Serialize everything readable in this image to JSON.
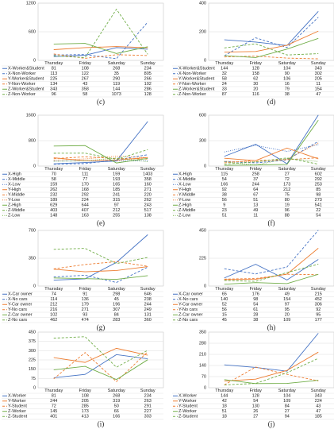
{
  "chart_data": [
    {
      "type": "line",
      "label": "(c)",
      "categories": [
        "Thursday",
        "Friday",
        "Saturday",
        "Sunday"
      ],
      "ylim": [
        0,
        1200
      ],
      "yticks": [
        0,
        600,
        1200
      ],
      "grid": true,
      "series": [
        {
          "name": "X-Worker&Student",
          "color": "#4472c4",
          "line_style": "solid",
          "values": [
            81,
            108,
            268,
            234
          ]
        },
        {
          "name": "X-Non-Worker",
          "color": "#4472c4",
          "line_style": "dashed",
          "values": [
            113,
            122,
            35,
            805
          ]
        },
        {
          "name": "Y-Worker&Student",
          "color": "#ed7d31",
          "line_style": "solid",
          "values": [
            225,
            267,
            290,
            266
          ]
        },
        {
          "name": "Y-Non-Worker",
          "color": "#ed7d31",
          "line_style": "dashed",
          "values": [
            134,
            43,
            119,
            102
          ]
        },
        {
          "name": "Z-Worker&Student",
          "color": "#70ad47",
          "line_style": "solid",
          "values": [
            343,
            358,
            144,
            286
          ]
        },
        {
          "name": "Z-Non-Worker",
          "color": "#70ad47",
          "line_style": "dashed",
          "values": [
            96,
            58,
            1073,
            128
          ]
        }
      ]
    },
    {
      "type": "line",
      "label": "(d)",
      "categories": [
        "Thursday",
        "Friday",
        "Saturday",
        "Sunday"
      ],
      "ylim": [
        0,
        400
      ],
      "yticks": [
        0,
        200,
        400
      ],
      "grid": true,
      "series": [
        {
          "name": "X-Worker&Student",
          "color": "#4472c4",
          "line_style": "solid",
          "values": [
            144,
            128,
            104,
            343
          ]
        },
        {
          "name": "X-Non-Worker",
          "color": "#4472c4",
          "line_style": "dashed",
          "values": [
            32,
            158,
            90,
            302
          ]
        },
        {
          "name": "Y-Worker&Student",
          "color": "#ed7d31",
          "line_style": "solid",
          "values": [
            58,
            62,
            106,
            205
          ]
        },
        {
          "name": "Y-Non-Worker",
          "color": "#ed7d31",
          "line_style": "dashed",
          "values": [
            24,
            30,
            16,
            11
          ]
        },
        {
          "name": "Z-Worker&Student",
          "color": "#70ad47",
          "line_style": "solid",
          "values": [
            33,
            20,
            79,
            154
          ]
        },
        {
          "name": "Z-Non-Worker",
          "color": "#70ad47",
          "line_style": "dashed",
          "values": [
            87,
            116,
            38,
            47
          ]
        }
      ]
    },
    {
      "type": "line",
      "label": "(e)",
      "categories": [
        "Thursday",
        "Friday",
        "Saturday",
        "Sunday"
      ],
      "ylim": [
        0,
        1600
      ],
      "yticks": [
        0,
        800,
        1600
      ],
      "grid": true,
      "series": [
        {
          "name": "X-High",
          "color": "#4472c4",
          "line_style": "solid",
          "values": [
            70,
            111,
            159,
            1403
          ]
        },
        {
          "name": "X-Middle",
          "color": "#4472c4",
          "line_style": "dashed",
          "values": [
            58,
            77,
            193,
            358
          ]
        },
        {
          "name": "X-Low",
          "color": "#4472c4",
          "line_style": "dotted",
          "values": [
            159,
            170,
            165,
            160
          ]
        },
        {
          "name": "Y-High",
          "color": "#ed7d31",
          "line_style": "solid",
          "values": [
            262,
            168,
            185,
            271
          ]
        },
        {
          "name": "Y-Middle",
          "color": "#ed7d31",
          "line_style": "dashed",
          "values": [
            232,
            292,
            241,
            220
          ]
        },
        {
          "name": "Y-Low",
          "color": "#ed7d31",
          "line_style": "dotted",
          "values": [
            189,
            224,
            315,
            262
          ]
        },
        {
          "name": "Z-High",
          "color": "#70ad47",
          "line_style": "solid",
          "values": [
            629,
            644,
            97,
            243
          ]
        },
        {
          "name": "Z-Middle",
          "color": "#70ad47",
          "line_style": "dashed",
          "values": [
            403,
            407,
            212,
            517
          ]
        },
        {
          "name": "Z-Low",
          "color": "#70ad47",
          "line_style": "dotted",
          "values": [
            148,
            163,
            255,
            138
          ]
        }
      ]
    },
    {
      "type": "line",
      "label": "(f)",
      "categories": [
        "Thursday",
        "Friday",
        "Saturday",
        "Sunday"
      ],
      "ylim": [
        0,
        600
      ],
      "yticks": [
        0,
        300,
        600
      ],
      "grid": true,
      "series": [
        {
          "name": "X-High",
          "color": "#4472c4",
          "line_style": "solid",
          "values": [
            115,
            258,
            27,
            602
          ]
        },
        {
          "name": "X-Middle",
          "color": "#4472c4",
          "line_style": "dashed",
          "values": [
            54,
            37,
            72,
            292
          ]
        },
        {
          "name": "X-Low",
          "color": "#4472c4",
          "line_style": "dotted",
          "values": [
            166,
            244,
            173,
            253
          ]
        },
        {
          "name": "Y-High",
          "color": "#ed7d31",
          "line_style": "solid",
          "values": [
            92,
            64,
            212,
            85
          ]
        },
        {
          "name": "Y-Middle",
          "color": "#ed7d31",
          "line_style": "dashed",
          "values": [
            38,
            67,
            75,
            98
          ]
        },
        {
          "name": "Y-Low",
          "color": "#ed7d31",
          "line_style": "dotted",
          "values": [
            56,
            51,
            80,
            273
          ]
        },
        {
          "name": "Z-High",
          "color": "#70ad47",
          "line_style": "solid",
          "values": [
            9,
            13,
            19,
            541
          ]
        },
        {
          "name": "Z-Middle",
          "color": "#70ad47",
          "line_style": "dashed",
          "values": [
            23,
            49,
            96,
            22
          ]
        },
        {
          "name": "Z-Low",
          "color": "#70ad47",
          "line_style": "dotted",
          "values": [
            51,
            11,
            88,
            54
          ]
        }
      ]
    },
    {
      "type": "line",
      "label": "(g)",
      "categories": [
        "Thursday",
        "Friday",
        "Saturday",
        "Sunday"
      ],
      "ylim": [
        0,
        700
      ],
      "yticks": [
        0,
        350,
        700
      ],
      "grid": true,
      "series": [
        {
          "name": "X-Car owner",
          "color": "#4472c4",
          "line_style": "solid",
          "values": [
            74,
            91,
            298,
            646
          ]
        },
        {
          "name": "X-No cars",
          "color": "#4472c4",
          "line_style": "dashed",
          "values": [
            114,
            136,
            45,
            238
          ]
        },
        {
          "name": "Y-Car owner",
          "color": "#ed7d31",
          "line_style": "solid",
          "values": [
            212,
            179,
            196,
            244
          ]
        },
        {
          "name": "Y-No cars",
          "color": "#ed7d31",
          "line_style": "dashed",
          "values": [
            216,
            271,
            307,
            249
          ]
        },
        {
          "name": "Z-Car owner",
          "color": "#70ad47",
          "line_style": "solid",
          "values": [
            102,
            93,
            84,
            131
          ]
        },
        {
          "name": "Z-No cars",
          "color": "#70ad47",
          "line_style": "dashed",
          "values": [
            462,
            474,
            283,
            360
          ]
        }
      ]
    },
    {
      "type": "line",
      "label": "(h)",
      "categories": [
        "Thursday",
        "Friday",
        "Saturday",
        "Sunday"
      ],
      "ylim": [
        0,
        450
      ],
      "yticks": [
        0,
        225,
        450
      ],
      "grid": true,
      "series": [
        {
          "name": "X-Car owner",
          "color": "#4472c4",
          "line_style": "solid",
          "values": [
            65,
            176,
            49,
            215
          ]
        },
        {
          "name": "X-No cars",
          "color": "#4472c4",
          "line_style": "dashed",
          "values": [
            140,
            98,
            154,
            452
          ]
        },
        {
          "name": "Y-Car owner",
          "color": "#ed7d31",
          "line_style": "solid",
          "values": [
            52,
            54,
            97,
            306
          ]
        },
        {
          "name": "Y-No cars",
          "color": "#ed7d31",
          "line_style": "dashed",
          "values": [
            56,
            61,
            95,
            92
          ]
        },
        {
          "name": "Z-Car owner",
          "color": "#70ad47",
          "line_style": "solid",
          "values": [
            15,
            28,
            20,
            95
          ]
        },
        {
          "name": "Z-No cars",
          "color": "#70ad47",
          "line_style": "dashed",
          "values": [
            45,
            38,
            109,
            177
          ]
        }
      ]
    },
    {
      "type": "line",
      "label": "(i)",
      "categories": [
        "Thursday",
        "Friday",
        "Saturday",
        "Sunday"
      ],
      "ylim": [
        0,
        450
      ],
      "yticks": [
        0,
        75,
        150,
        225,
        300,
        375,
        450
      ],
      "grid": true,
      "series": [
        {
          "name": "X-Worker",
          "color": "#4472c4",
          "line_style": "solid",
          "values": [
            81,
            108,
            268,
            234
          ]
        },
        {
          "name": "Y-Worker",
          "color": "#ed7d31",
          "line_style": "solid",
          "values": [
            244,
            205,
            319,
            263
          ]
        },
        {
          "name": "Y-Student",
          "color": "#ed7d31",
          "line_style": "dashed",
          "values": [
            72,
            285,
            50,
            291
          ]
        },
        {
          "name": "Z-Worker",
          "color": "#70ad47",
          "line_style": "solid",
          "values": [
            145,
            173,
            66,
            227
          ]
        },
        {
          "name": "Z-Student",
          "color": "#70ad47",
          "line_style": "dashed",
          "values": [
            401,
            413,
            166,
            303
          ]
        }
      ]
    },
    {
      "type": "line",
      "label": "(j)",
      "categories": [
        "Thursday",
        "Friday",
        "Saturday",
        "Sunday"
      ],
      "ylim": [
        0,
        350
      ],
      "yticks": [
        0,
        70,
        140,
        210,
        280,
        350
      ],
      "grid": true,
      "series": [
        {
          "name": "X-Worker",
          "color": "#4472c4",
          "line_style": "solid",
          "values": [
            144,
            128,
            104,
            343
          ]
        },
        {
          "name": "Y-Worker",
          "color": "#ed7d31",
          "line_style": "solid",
          "values": [
            42,
            54,
            109,
            224
          ]
        },
        {
          "name": "Y-Student",
          "color": "#ed7d31",
          "line_style": "dashed",
          "values": [
            18,
            130,
            84,
            43
          ]
        },
        {
          "name": "Z-Worker",
          "color": "#70ad47",
          "line_style": "solid",
          "values": [
            51,
            26,
            27,
            47
          ]
        },
        {
          "name": "Z-Student",
          "color": "#70ad47",
          "line_style": "dashed",
          "values": [
            18,
            27,
            94,
            185
          ]
        }
      ]
    }
  ]
}
